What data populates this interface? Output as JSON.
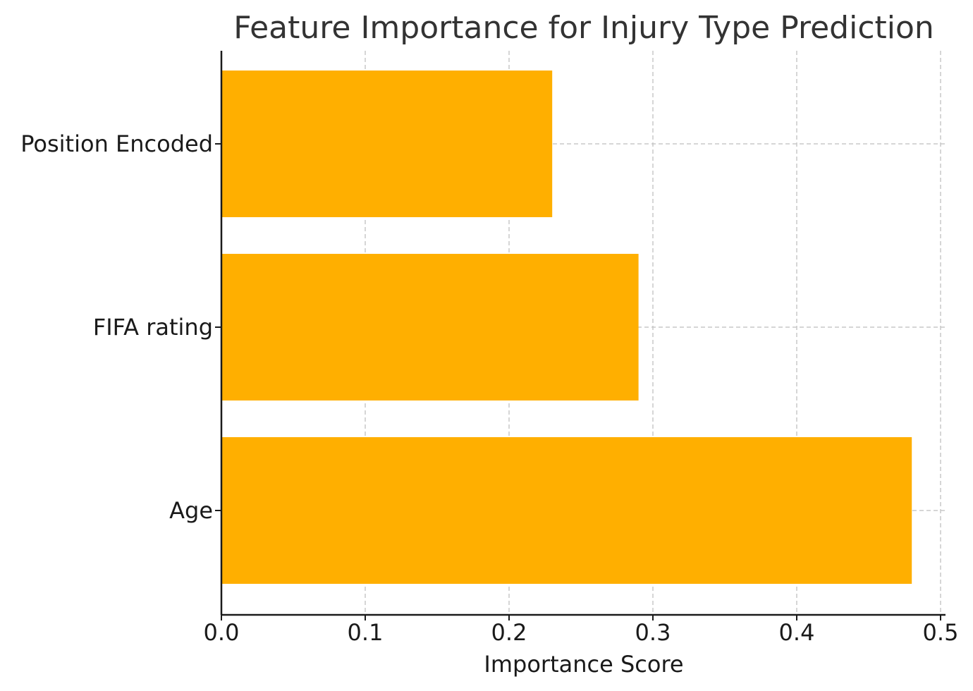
{
  "chart_data": {
    "type": "bar",
    "orientation": "horizontal",
    "title": "Feature Importance for Injury Type Prediction",
    "xlabel": "Importance Score",
    "ylabel": "",
    "categories": [
      "Age",
      "FIFA rating",
      "Position Encoded"
    ],
    "values": [
      0.48,
      0.29,
      0.23
    ],
    "xlim": [
      0.0,
      0.5
    ],
    "xticks": [
      "0.0",
      "0.1",
      "0.2",
      "0.3",
      "0.4",
      "0.5"
    ],
    "grid": true,
    "legend": "none",
    "bar_color": "#FFAF00"
  }
}
